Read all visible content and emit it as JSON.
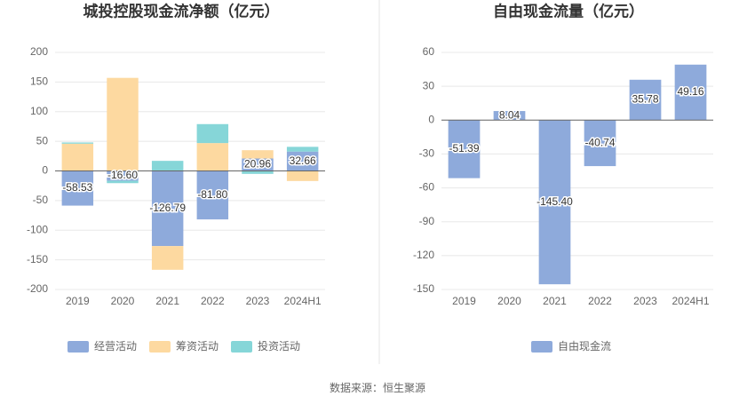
{
  "chart_data": [
    {
      "type": "stacked_bar",
      "title": "城投控股现金流净额（亿元）",
      "categories": [
        "2019",
        "2020",
        "2021",
        "2022",
        "2023",
        "2024H1"
      ],
      "series": [
        {
          "name": "经营活动",
          "color": "#8eaadb",
          "values": [
            -58.53,
            -16.6,
            -126.79,
            -81.8,
            20.96,
            32.66
          ],
          "value_labels": [
            "-58.53",
            "-16.60",
            "-126.79",
            "-81.80",
            "20.96",
            "32.66"
          ]
        },
        {
          "name": "筹资活动",
          "color": "#fdd9a0",
          "values": [
            46,
            157,
            -40,
            47,
            14,
            -17
          ]
        },
        {
          "name": "投资活动",
          "color": "#86d6d8",
          "values": [
            2,
            -4,
            17,
            32,
            -5,
            8
          ]
        }
      ],
      "ylim": [
        -200,
        200
      ],
      "yticks": [
        -200,
        -150,
        -100,
        -50,
        0,
        50,
        100,
        150,
        200
      ],
      "grid": true
    },
    {
      "type": "bar",
      "title": "自由现金流量（亿元）",
      "categories": [
        "2019",
        "2020",
        "2021",
        "2022",
        "2023",
        "2024H1"
      ],
      "series": [
        {
          "name": "自由现金流",
          "color": "#8eaadb",
          "values": [
            -51.39,
            8.04,
            -145.4,
            -40.74,
            35.78,
            49.16
          ],
          "value_labels": [
            "-51.39",
            "8.04",
            "-145.40",
            "-40.74",
            "35.78",
            "49.16"
          ]
        }
      ],
      "ylim": [
        -150,
        60
      ],
      "yticks": [
        -150,
        -120,
        -90,
        -60,
        -30,
        0,
        30,
        60
      ],
      "grid": true
    }
  ],
  "source": "数据来源：恒生聚源"
}
